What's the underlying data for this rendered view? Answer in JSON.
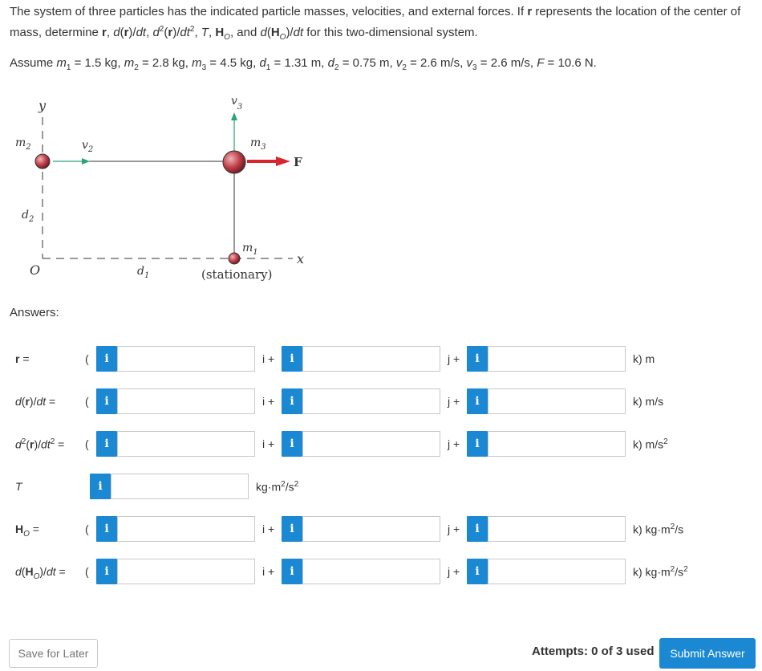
{
  "problem": {
    "intro_html": "The system of three particles has the indicated particle masses, velocities, and external forces. If <b>r</b> represents the location of the center of mass, determine <b>r</b>, <i>d</i>(<b>r</b>)/<i>dt</i>, <i>d</i><sup>2</sup>(<b>r</b>)/<i>dt</i><sup>2</sup>, <i>T</i>, <b>H</b><sub><i>O</i></sub>, and <i>d</i>(<b>H</b><sub><i>O</i></sub>)/<i>dt</i> for this two-dimensional system.",
    "assume_html": "Assume <i>m</i><sub>1</sub> = 1.5 kg, <i>m</i><sub>2</sub> = 2.8 kg, <i>m</i><sub>3</sub> = 4.5 kg, <i>d</i><sub>1</sub> = 1.31 m, <i>d</i><sub>2</sub> = 0.75 m, <i>v</i><sub>2</sub> = 2.6 m/s, <i>v</i><sub>3</sub> = 2.6 m/s, <i>F</i> = 10.6 N."
  },
  "figure": {
    "y_label": "y",
    "x_label": "x",
    "origin_label": "O",
    "m1": "m",
    "m1_sub": "1",
    "m2": "m",
    "m2_sub": "2",
    "m3": "m",
    "m3_sub": "3",
    "v2": "v",
    "v2_sub": "2",
    "v3": "v",
    "v3_sub": "3",
    "d1": "d",
    "d1_sub": "1",
    "d2": "d",
    "d2_sub": "2",
    "force_label": "F",
    "stationary": "(stationary)",
    "colors": {
      "mass": "#c0404a",
      "force": "#d9262e",
      "velocity": "#2aa37a"
    }
  },
  "answers_label": "Answers:",
  "rows": [
    {
      "label_html": "<b>r</b> =",
      "open": "(",
      "units": [
        "i +",
        "j +",
        "k) m"
      ],
      "type": "vector"
    },
    {
      "label_html": "<i>d</i>(<b>r</b>)/<i>dt</i> =",
      "open": "(",
      "units": [
        "i +",
        "j +",
        "k) m/s"
      ],
      "type": "vector"
    },
    {
      "label_html": "<i>d</i><sup>2</sup>(<b>r</b>)/<i>dt</i><sup>2</sup> =",
      "open": "(",
      "units": [
        "i +",
        "j +",
        "k) m/s<sup>2</sup>"
      ],
      "type": "vector"
    },
    {
      "label_html": "<i>T</i>",
      "open": "",
      "units": [
        "kg·m<sup>2</sup>/s<sup>2</sup>"
      ],
      "type": "scalar"
    },
    {
      "label_html": "<b>H</b><sub><i>O</i></sub> =",
      "open": "(",
      "units": [
        "i +",
        "j +",
        "k) kg·m<sup>2</sup>/s"
      ],
      "type": "vector"
    },
    {
      "label_html": "<i>d</i>(<b>H</b><sub><i>O</i></sub>)/<i>dt</i> =",
      "open": "(",
      "units": [
        "i +",
        "j +",
        "k) kg·m<sup>2</sup>/s<sup>2</sup>"
      ],
      "type": "vector"
    }
  ],
  "info_icon_glyph": "i",
  "footer": {
    "save_label": "Save for Later",
    "attempts": "Attempts: 0 of 3 used",
    "submit_label": "Submit Answer"
  }
}
